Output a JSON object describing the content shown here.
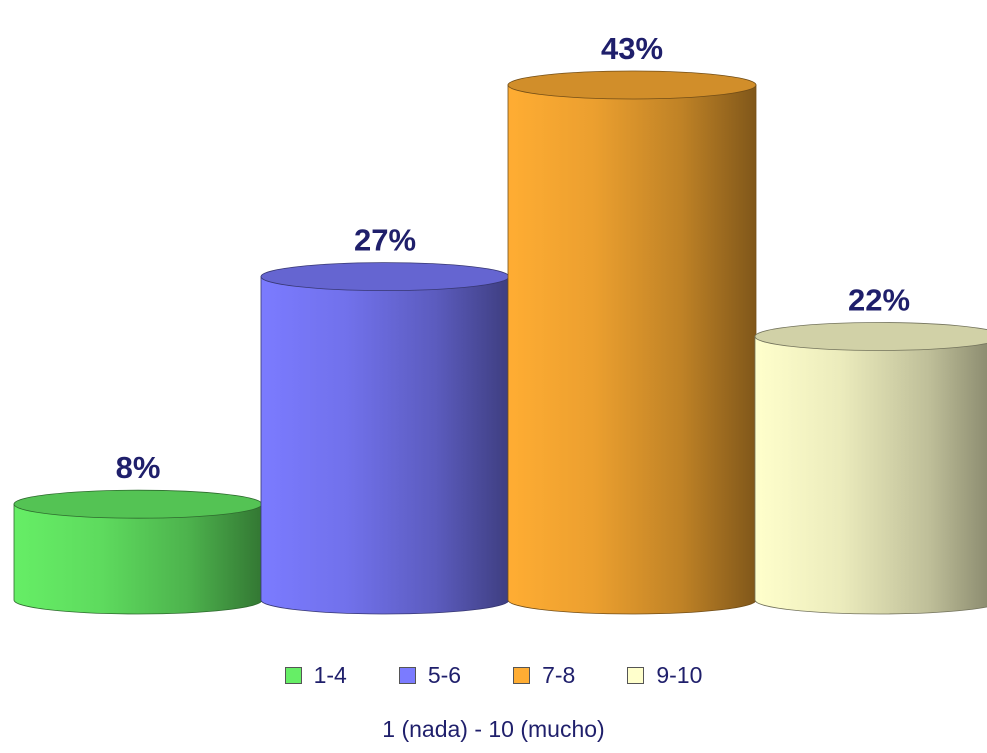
{
  "chart_data": {
    "type": "bar",
    "categories": [
      "1-4",
      "5-6",
      "7-8",
      "9-10"
    ],
    "values": [
      8,
      27,
      43,
      22
    ],
    "value_labels": [
      "8%",
      "27%",
      "43%",
      "22%"
    ],
    "unit": "%",
    "xlabel": "1 (nada)  - 10 (mucho)",
    "ylim": [
      0,
      43
    ],
    "grid": false,
    "legend": "bottom",
    "bar_style": "3d-cylinder"
  },
  "colors": {
    "1-4": "#66ee66",
    "5-6": "#7b7bff",
    "7-8": "#ffad33",
    "9-10": "#ffffcc",
    "label_text": "#1f1f6b"
  },
  "legend": {
    "items": [
      {
        "label": "1-4",
        "color": "#66ee66"
      },
      {
        "label": "5-6",
        "color": "#7b7bff"
      },
      {
        "label": "7-8",
        "color": "#ffad33"
      },
      {
        "label": "9-10",
        "color": "#ffffcc"
      }
    ]
  },
  "axis": {
    "xlabel": "1 (nada)  - 10 (mucho)"
  }
}
